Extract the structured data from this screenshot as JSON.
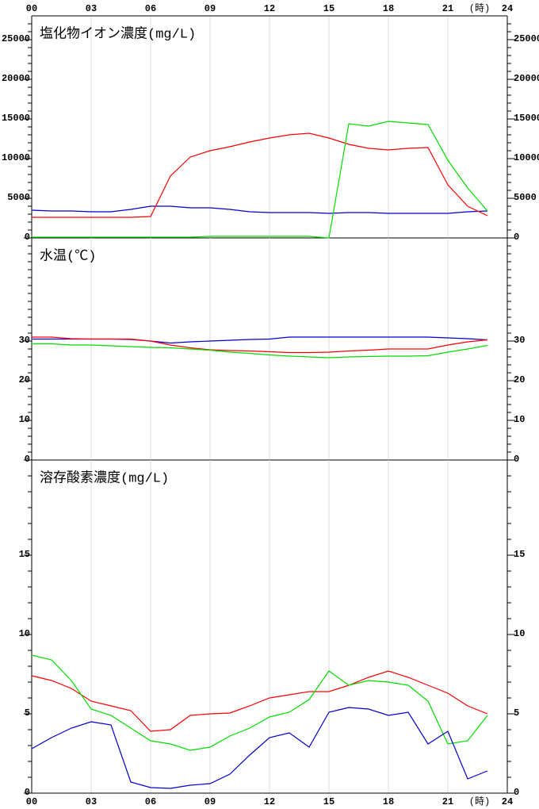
{
  "chart_data": [
    {
      "type": "line",
      "title": "塩化物イオン濃度(mg/L)",
      "xlabel": "(時)",
      "x": [
        0,
        1,
        2,
        3,
        4,
        5,
        6,
        7,
        8,
        9,
        10,
        11,
        12,
        13,
        14,
        15,
        16,
        17,
        18,
        19,
        20,
        21,
        22,
        23
      ],
      "xlim": [
        0,
        24
      ],
      "xticks": [
        {
          "value": 0,
          "label": "00"
        },
        {
          "value": 3,
          "label": "03"
        },
        {
          "value": 6,
          "label": "06"
        },
        {
          "value": 9,
          "label": "09"
        },
        12,
        15,
        18,
        21,
        24
      ],
      "xgrid": true,
      "ylim": [
        0,
        28000
      ],
      "yticks": [
        0,
        5000,
        10000,
        15000,
        20000,
        25000
      ],
      "yminorticks": [
        1000,
        2000,
        3000,
        4000,
        6000,
        7000,
        8000,
        9000,
        11000,
        12000,
        13000,
        14000,
        16000,
        17000,
        18000,
        19000,
        21000,
        22000,
        23000,
        24000,
        26000,
        27000
      ],
      "series": [
        {
          "color": "#0000cc",
          "values": [
            3500,
            3400,
            3400,
            3300,
            3300,
            3600,
            4000,
            4000,
            3800,
            3800,
            3600,
            3300,
            3200,
            3200,
            3200,
            3100,
            3200,
            3200,
            3100,
            3100,
            3100,
            3100,
            3300,
            3400
          ]
        },
        {
          "color": "#ff0000",
          "values": [
            2600,
            2600,
            2600,
            2600,
            2600,
            2600,
            2700,
            7800,
            10200,
            11000,
            11500,
            12100,
            12600,
            13000,
            13200,
            12600,
            11800,
            11300,
            11100,
            11300,
            11400,
            6700,
            4000,
            2800
          ]
        },
        {
          "color": "#00dd00",
          "values": [
            100,
            100,
            100,
            100,
            100,
            100,
            100,
            100,
            100,
            200,
            200,
            200,
            200,
            200,
            200,
            0,
            14400,
            14100,
            14700,
            14500,
            14300,
            9800,
            6300,
            3400
          ]
        }
      ]
    },
    {
      "type": "line",
      "title": "水温(℃)",
      "x": [
        0,
        1,
        2,
        3,
        4,
        5,
        6,
        7,
        8,
        9,
        10,
        11,
        12,
        13,
        14,
        15,
        16,
        17,
        18,
        19,
        20,
        21,
        22,
        23
      ],
      "xlim": [
        0,
        24
      ],
      "xticks": [
        {
          "value": 0,
          "label": "00"
        },
        {
          "value": 3,
          "label": "03"
        },
        {
          "value": 6,
          "label": "06"
        },
        {
          "value": 9,
          "label": "09"
        },
        12,
        15,
        18,
        21,
        24
      ],
      "xgrid": true,
      "ylim": [
        0,
        56
      ],
      "yticks": [
        0,
        10,
        20,
        30
      ],
      "yminorticks": [
        2,
        4,
        6,
        8,
        12,
        14,
        16,
        18,
        22,
        24,
        26,
        28,
        32,
        34,
        36,
        38,
        40,
        42,
        44,
        46,
        48,
        50,
        52,
        54
      ],
      "series": [
        {
          "color": "#0000cc",
          "values": [
            30.5,
            30.5,
            30.5,
            30.5,
            30.5,
            30.4,
            30,
            29.5,
            29.8,
            30,
            30.2,
            30.4,
            30.5,
            31,
            31,
            31,
            31,
            31,
            31,
            31,
            31,
            30.8,
            30.6,
            30.3
          ]
        },
        {
          "color": "#ff0000",
          "values": [
            31,
            31,
            30.6,
            30.5,
            30.5,
            30.5,
            30,
            29,
            28.3,
            27.8,
            27.6,
            27.5,
            27.3,
            27.1,
            27.1,
            27.2,
            27.5,
            27.7,
            28,
            28,
            28,
            29,
            29.8,
            30.3
          ]
        },
        {
          "color": "#00dd00",
          "values": [
            29.3,
            29.3,
            29,
            29,
            28.8,
            28.6,
            28.4,
            28.3,
            28,
            27.7,
            27.2,
            26.9,
            26.5,
            26.2,
            26,
            25.8,
            26,
            26.1,
            26.2,
            26.2,
            26.3,
            27.2,
            28,
            28.9
          ]
        }
      ]
    },
    {
      "type": "line",
      "title": "溶存酸素濃度(mg/L)",
      "xlabel": "(時)",
      "x": [
        0,
        1,
        2,
        3,
        4,
        5,
        6,
        7,
        8,
        9,
        10,
        11,
        12,
        13,
        14,
        15,
        16,
        17,
        18,
        19,
        20,
        21,
        22,
        23
      ],
      "xlim": [
        0,
        24
      ],
      "xticks": [
        {
          "value": 0,
          "label": "00"
        },
        {
          "value": 3,
          "label": "03"
        },
        {
          "value": 6,
          "label": "06"
        },
        {
          "value": 9,
          "label": "09"
        },
        12,
        15,
        18,
        21,
        24
      ],
      "xgrid": true,
      "ylim": [
        0,
        21
      ],
      "yticks": [
        0,
        5,
        10,
        15
      ],
      "yminorticks": [
        1,
        2,
        3,
        4,
        6,
        7,
        8,
        9,
        11,
        12,
        13,
        14,
        16,
        17,
        18,
        19,
        20
      ],
      "series": [
        {
          "color": "#ff0000",
          "values": [
            7.4,
            7.1,
            6.6,
            5.8,
            5.5,
            5.2,
            3.9,
            4.0,
            4.9,
            5.0,
            5.05,
            5.5,
            6.0,
            6.2,
            6.4,
            6.4,
            6.8,
            7.3,
            7.7,
            7.3,
            6.8,
            6.3,
            5.5,
            5.0
          ]
        },
        {
          "color": "#00dd00",
          "values": [
            8.7,
            8.4,
            7.1,
            5.3,
            4.9,
            4.1,
            3.3,
            3.1,
            2.7,
            2.9,
            3.6,
            4.1,
            4.8,
            5.1,
            5.9,
            7.7,
            6.8,
            7.1,
            7.0,
            6.8,
            5.8,
            3.1,
            3.3,
            4.9
          ]
        },
        {
          "color": "#0000cc",
          "values": [
            2.8,
            3.5,
            4.1,
            4.5,
            4.3,
            0.7,
            0.35,
            0.3,
            0.5,
            0.6,
            1.2,
            2.4,
            3.5,
            3.8,
            2.9,
            5.1,
            5.4,
            5.3,
            4.9,
            5.1,
            3.1,
            3.9,
            0.9,
            1.4
          ]
        }
      ]
    }
  ]
}
